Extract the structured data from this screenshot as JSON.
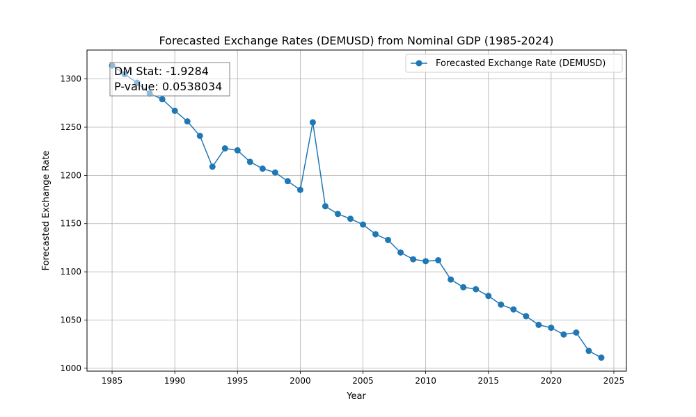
{
  "chart_data": {
    "type": "line",
    "title": "Forecasted Exchange Rates (DEMUSD) from Nominal GDP (1985-2024)",
    "xlabel": "Year",
    "ylabel": "Forecasted Exchange Rate",
    "xlim": [
      1983,
      2026
    ],
    "ylim": [
      997,
      1330
    ],
    "xticks": [
      1985,
      1990,
      1995,
      2000,
      2005,
      2010,
      2015,
      2020,
      2025
    ],
    "yticks": [
      1000,
      1050,
      1100,
      1150,
      1200,
      1250,
      1300
    ],
    "grid": true,
    "legend_position": "top-right",
    "series": [
      {
        "name": "Forecasted Exchange Rate (DEMUSD)",
        "color": "#1f77b4",
        "marker": "circle",
        "x": [
          1985,
          1986,
          1987,
          1988,
          1989,
          1990,
          1991,
          1992,
          1993,
          1994,
          1995,
          1996,
          1997,
          1998,
          1999,
          2000,
          2001,
          2002,
          2003,
          2004,
          2005,
          2006,
          2007,
          2008,
          2009,
          2010,
          2011,
          2012,
          2013,
          2014,
          2015,
          2016,
          2017,
          2018,
          2019,
          2020,
          2021,
          2022,
          2023,
          2024
        ],
        "values": [
          1314,
          1305,
          1296,
          1285,
          1279,
          1267,
          1256,
          1241,
          1209,
          1228,
          1226,
          1214,
          1207,
          1203,
          1194,
          1185,
          1255,
          1168,
          1160,
          1155,
          1149,
          1139,
          1133,
          1120,
          1113,
          1111,
          1112,
          1092,
          1084,
          1082,
          1075,
          1066,
          1061,
          1054,
          1045,
          1042,
          1035,
          1037,
          1018,
          1011
        ]
      }
    ],
    "annotation": {
      "line1": "DM Stat: -1.9284",
      "line2": "P-value: 0.0538034"
    }
  }
}
